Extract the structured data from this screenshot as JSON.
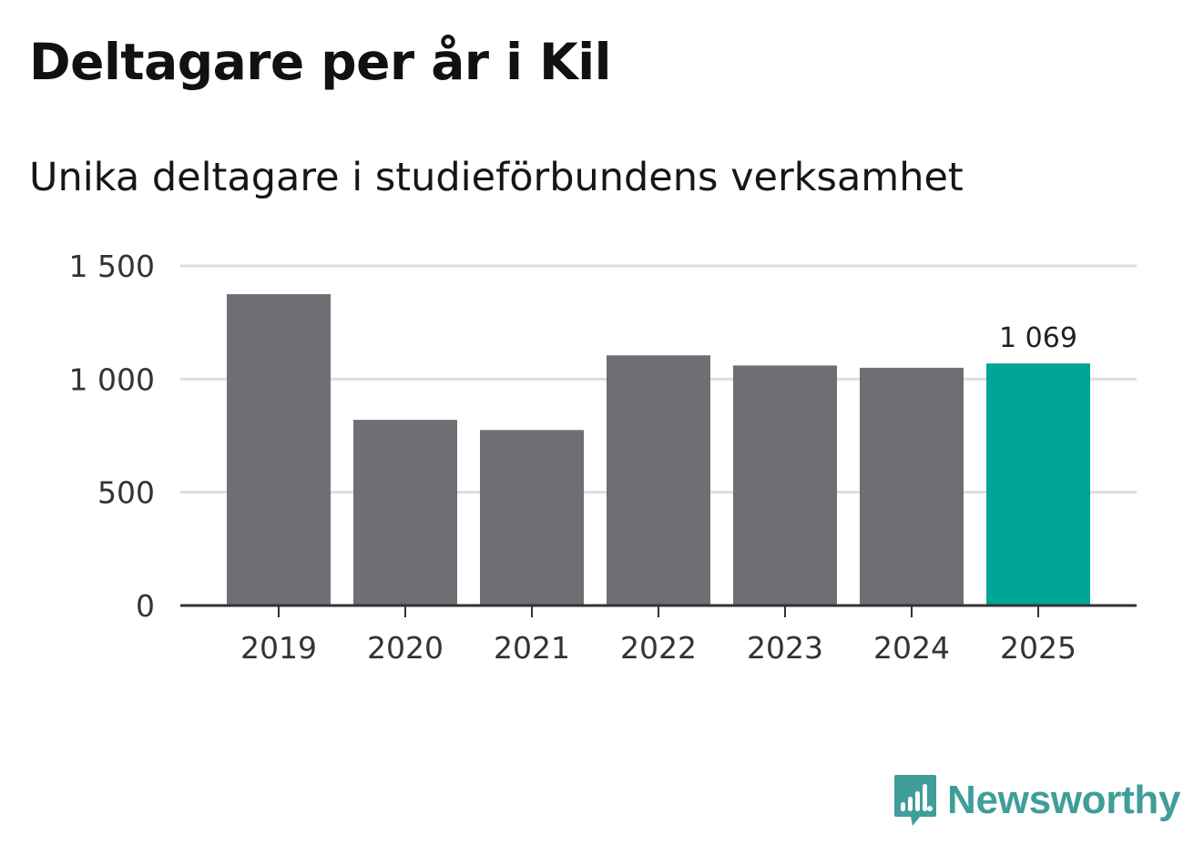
{
  "header": {
    "title": "Deltagare per år i Kil",
    "subtitle": "Unika deltagare i studieförbundens verksamhet"
  },
  "brand": {
    "name": "Newsworthy",
    "color": "#3f9e9a",
    "icon": "newsworthy-logo-icon"
  },
  "colors": {
    "bar": "#6f6e74",
    "highlight": "#00a59a",
    "grid": "#dedede",
    "axis": "#333333"
  },
  "chart_data": {
    "type": "bar",
    "categories": [
      "2019",
      "2020",
      "2021",
      "2022",
      "2023",
      "2024",
      "2025"
    ],
    "values": [
      1375,
      820,
      775,
      1105,
      1060,
      1050,
      1069
    ],
    "highlight_index": 6,
    "annotations": [
      {
        "category": "2025",
        "label": "1 069"
      }
    ],
    "yticks": [
      {
        "value": 0,
        "label": "0"
      },
      {
        "value": 500,
        "label": "500"
      },
      {
        "value": 1000,
        "label": "1 000"
      },
      {
        "value": 1500,
        "label": "1 500"
      }
    ],
    "ylim": [
      0,
      1500
    ],
    "grid": true,
    "legend": "none",
    "title": "Deltagare per år i Kil",
    "subtitle": "Unika deltagare i studieförbundens verksamhet",
    "xlabel": "",
    "ylabel": ""
  }
}
